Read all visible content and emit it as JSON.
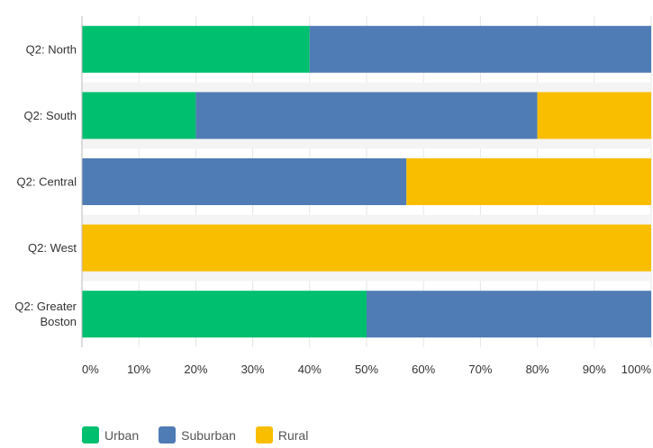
{
  "chart_data": {
    "type": "bar",
    "orientation": "horizontal",
    "stacked": "percent",
    "categories": [
      "Q2: North",
      "Q2: South",
      "Q2: Central",
      "Q2: West",
      "Q2: Greater Boston"
    ],
    "series": [
      {
        "name": "Urban",
        "color": "#00bf6f",
        "values": [
          40,
          20,
          0,
          0,
          50
        ]
      },
      {
        "name": "Suburban",
        "color": "#507cb6",
        "values": [
          60,
          60,
          57,
          0,
          50
        ]
      },
      {
        "name": "Rural",
        "color": "#f9be00",
        "values": [
          0,
          20,
          43,
          100,
          0
        ]
      }
    ],
    "x_ticks": [
      "0%",
      "10%",
      "20%",
      "30%",
      "40%",
      "50%",
      "60%",
      "70%",
      "80%",
      "90%",
      "100%"
    ],
    "xlim": [
      0,
      100
    ],
    "title": "",
    "xlabel": "",
    "ylabel": "",
    "grid": true,
    "legend": "bottom-left"
  }
}
